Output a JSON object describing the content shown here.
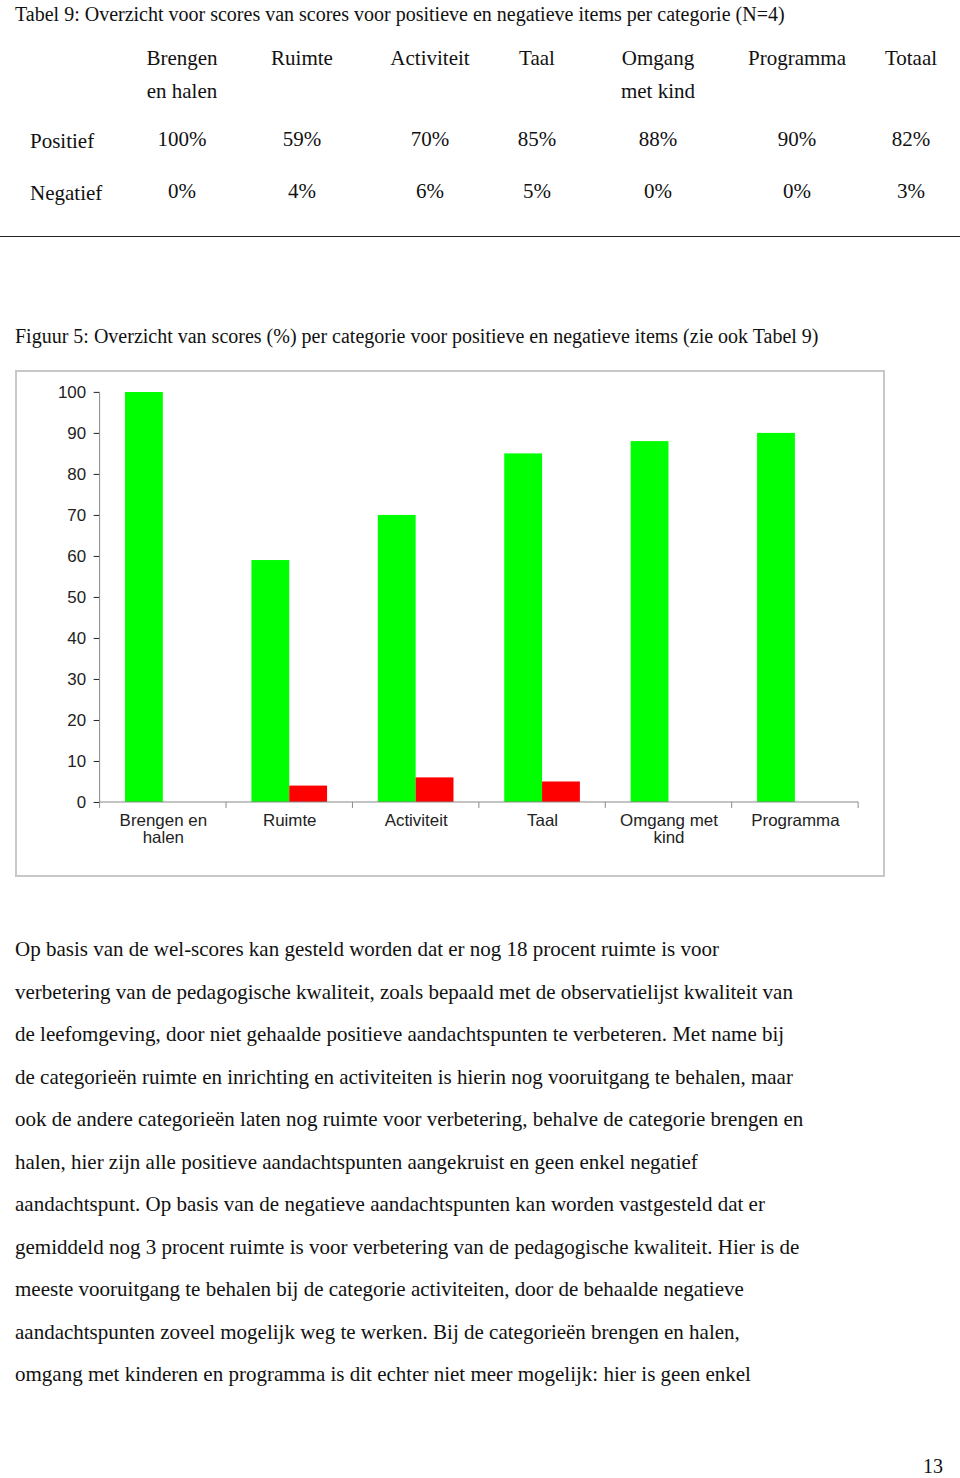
{
  "table": {
    "title": "Tabel 9: Overzicht voor scores van scores voor positieve en negatieve items per categorie (N=4)",
    "columns": [
      "Brengen en halen",
      "Ruimte",
      "Activiteit",
      "Taal",
      "Omgang met kind",
      "Programma",
      "Totaal"
    ],
    "rows": [
      {
        "label": "Positief",
        "cells": [
          "100%",
          "59%",
          "70%",
          "85%",
          "88%",
          "90%",
          "82%"
        ]
      },
      {
        "label": "Negatief",
        "cells": [
          "0%",
          "4%",
          "6%",
          "5%",
          "0%",
          "0%",
          "3%"
        ]
      }
    ]
  },
  "chart_data": {
    "type": "bar",
    "title": "Figuur 5: Overzicht van scores (%) per categorie voor positieve en negatieve items (zie ook Tabel 9)",
    "categories": [
      "Brengen en halen",
      "Ruimte",
      "Activiteit",
      "Taal",
      "Omgang met kind",
      "Programma"
    ],
    "series": [
      {
        "name": "Positief",
        "color": "#00ff00",
        "values": [
          100,
          59,
          70,
          85,
          88,
          90
        ]
      },
      {
        "name": "Negatief",
        "color": "#ff0000",
        "values": [
          0,
          4,
          6,
          5,
          0,
          0
        ]
      }
    ],
    "ylim": [
      0,
      100
    ],
    "yticks": [
      0,
      10,
      20,
      30,
      40,
      50,
      60,
      70,
      80,
      90,
      100
    ],
    "grid": false
  },
  "body_text": [
    "Op basis van de wel-scores kan gesteld worden dat er nog 18 procent ruimte is voor",
    "verbetering van de pedagogische kwaliteit, zoals bepaald met de observatielijst kwaliteit van",
    "de leefomgeving, door niet gehaalde positieve aandachtspunten te verbeteren. Met name bij",
    "de categorieën ruimte en inrichting en activiteiten is hierin nog vooruitgang te behalen, maar",
    "ook de andere categorieën laten nog ruimte voor verbetering, behalve de categorie brengen en",
    "halen, hier zijn alle positieve aandachtspunten aangekruist en geen enkel negatief",
    "aandachtspunt. Op basis van de negatieve aandachtspunten kan worden vastgesteld dat er",
    "gemiddeld nog 3 procent ruimte is voor verbetering van de pedagogische kwaliteit. Hier is de",
    "meeste vooruitgang te behalen bij de categorie activiteiten, door de behaalde negatieve",
    "aandachtspunten zoveel mogelijk weg te werken. Bij de categorieën brengen en halen,",
    "omgang met kinderen en programma is dit echter niet meer mogelijk: hier is geen enkel"
  ],
  "page_number": 13
}
